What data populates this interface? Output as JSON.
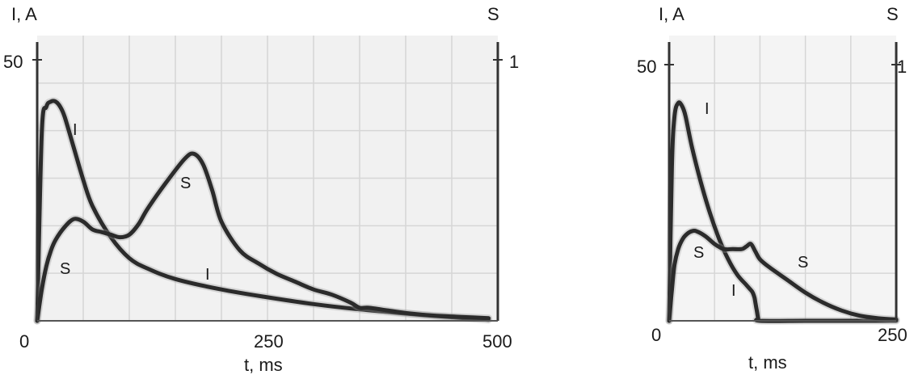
{
  "chart_data": [
    {
      "type": "line",
      "title": "",
      "xlabel": "t, ms",
      "ylabel_left": "I, A",
      "ylabel_right": "S",
      "x_ticks": [
        "0",
        "250",
        "500"
      ],
      "y_ticks_left": [
        "50"
      ],
      "y_ticks_right": [
        "1"
      ],
      "xlim": [
        0,
        500
      ],
      "ylim_left": [
        0,
        50
      ],
      "ylim_right": [
        0,
        1
      ],
      "grid": true,
      "series": [
        {
          "name": "I",
          "axis": "left",
          "x": [
            0,
            5,
            10,
            15,
            20,
            25,
            30,
            40,
            50,
            60,
            80,
            100,
            120,
            150,
            200,
            250,
            300,
            350,
            400,
            450,
            490
          ],
          "y": [
            0,
            36,
            41,
            42,
            42,
            41,
            39,
            33,
            27,
            22,
            16,
            12,
            10,
            8,
            6,
            4.5,
            3.2,
            2.2,
            1.4,
            0.7,
            0.2
          ]
        },
        {
          "name": "S",
          "axis": "right",
          "x": [
            0,
            5,
            10,
            15,
            20,
            30,
            40,
            50,
            60,
            70,
            80,
            90,
            100,
            110,
            120,
            140,
            160,
            170,
            180,
            190,
            200,
            220,
            240,
            260,
            280,
            300,
            320,
            340,
            350,
            360,
            380,
            400,
            430,
            460,
            490
          ],
          "y": [
            0,
            0.12,
            0.21,
            0.27,
            0.31,
            0.36,
            0.39,
            0.38,
            0.35,
            0.34,
            0.33,
            0.32,
            0.33,
            0.37,
            0.43,
            0.53,
            0.62,
            0.64,
            0.6,
            0.5,
            0.38,
            0.27,
            0.22,
            0.18,
            0.15,
            0.12,
            0.1,
            0.07,
            0.05,
            0.05,
            0.04,
            0.03,
            0.02,
            0.015,
            0.01
          ]
        }
      ],
      "annotations": [
        "I",
        "I",
        "S",
        "S"
      ]
    },
    {
      "type": "line",
      "title": "",
      "xlabel": "t, ms",
      "ylabel_left": "I, A",
      "ylabel_right": "S",
      "x_ticks": [
        "0",
        "250"
      ],
      "y_ticks_left": [
        "50"
      ],
      "y_ticks_right": [
        "1"
      ],
      "xlim": [
        0,
        250
      ],
      "ylim_left": [
        0,
        50
      ],
      "ylim_right": [
        0,
        1
      ],
      "grid": true,
      "series": [
        {
          "name": "I",
          "axis": "left",
          "x": [
            0,
            3,
            6,
            10,
            14,
            18,
            25,
            35,
            45,
            55,
            65,
            75,
            85,
            90,
            92,
            94,
            95,
            96,
            97,
            98,
            100,
            150,
            200,
            250
          ],
          "y": [
            0,
            30,
            40,
            42.5,
            42,
            40,
            34,
            27,
            21,
            16,
            12,
            9,
            7,
            6,
            5.5,
            4.5,
            3.5,
            2.5,
            1.5,
            0.5,
            0,
            0,
            0,
            0
          ]
        },
        {
          "name": "S",
          "axis": "right",
          "x": [
            0,
            3,
            6,
            10,
            15,
            20,
            25,
            30,
            40,
            50,
            60,
            70,
            80,
            85,
            90,
            95,
            100,
            110,
            130,
            150,
            170,
            190,
            210,
            230,
            250
          ],
          "y": [
            0,
            0.12,
            0.22,
            0.28,
            0.32,
            0.34,
            0.35,
            0.35,
            0.33,
            0.3,
            0.28,
            0.28,
            0.28,
            0.29,
            0.3,
            0.27,
            0.24,
            0.21,
            0.16,
            0.11,
            0.07,
            0.04,
            0.02,
            0.01,
            0.005
          ]
        }
      ],
      "annotations": [
        "I",
        "I",
        "S",
        "S"
      ]
    }
  ]
}
